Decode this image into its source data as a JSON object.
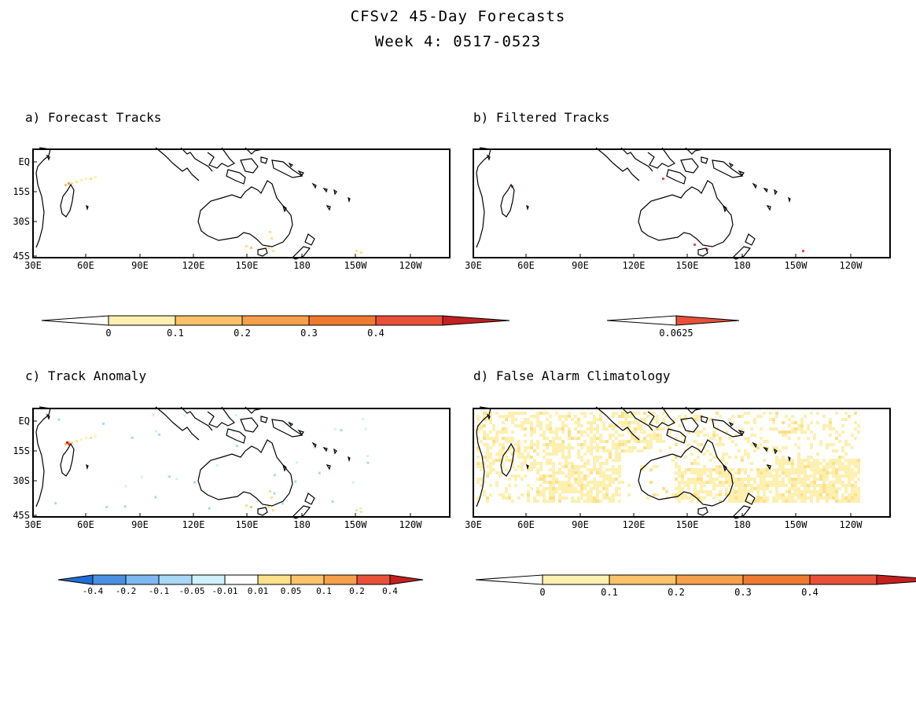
{
  "header": {
    "title": "CFSv2 45-Day Forecasts",
    "subtitle": "Week 4: 0517-0523"
  },
  "lon_labels": [
    "30E",
    "60E",
    "90E",
    "120E",
    "150E",
    "180",
    "150W",
    "120W"
  ],
  "lat_labels": [
    "EQ",
    "15S",
    "30S",
    "45S"
  ],
  "colors": {
    "land_outline": "#000000",
    "neg4": "#1f6fd6",
    "neg3": "#4a90e2",
    "neg2": "#7db8f0",
    "neg1": "#a8d8f5",
    "neg0": "#d0f0fb",
    "c0": "#fdf0b0",
    "c1": "#fde08a",
    "c2": "#f9c26b",
    "c3": "#f5a04a",
    "c4": "#ee7a30",
    "c5": "#e8503a",
    "c6": "#c42020"
  },
  "panels": [
    {
      "id": "a",
      "label": "a) Forecast Tracks",
      "field": "forecast_tracks",
      "colorbar": {
        "ticks": [
          "0",
          "0.1",
          "0.2",
          "0.3",
          "0.4"
        ]
      }
    },
    {
      "id": "b",
      "label": "b) Filtered Tracks",
      "field": "filtered_tracks",
      "colorbar": {
        "ticks": [
          "0.0625"
        ]
      }
    },
    {
      "id": "c",
      "label": "c) Track Anomaly",
      "field": "track_anomaly",
      "colorbar": {
        "ticks": [
          "-0.4",
          "-0.2",
          "-0.1",
          "-0.05",
          "-0.01",
          "0.01",
          "0.05",
          "0.1",
          "0.2",
          "0.4"
        ]
      }
    },
    {
      "id": "d",
      "label": "d) False Alarm Climatology",
      "field": "false_alarm_climatology",
      "colorbar": {
        "ticks": [
          "0",
          "0.1",
          "0.2",
          "0.3",
          "0.4"
        ]
      }
    }
  ]
}
